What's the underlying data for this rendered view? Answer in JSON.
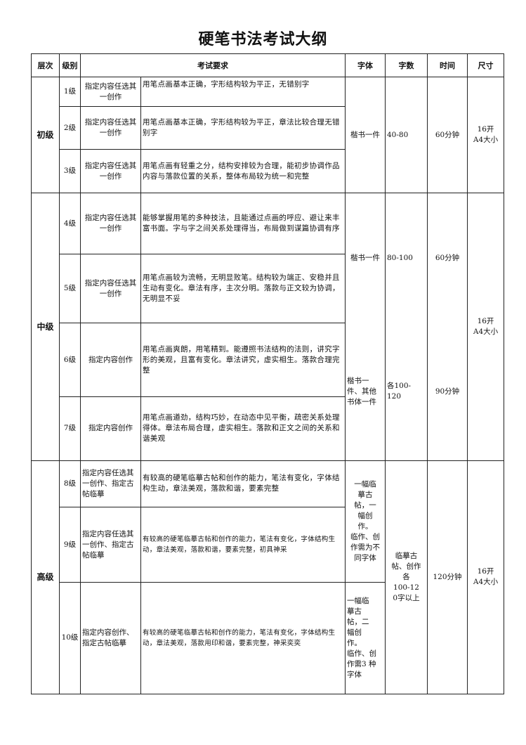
{
  "title": "硬笔书法考试大纲",
  "headers": {
    "level": "层次",
    "grade": "级别",
    "requirements": "考试要求",
    "script": "字体",
    "count": "字数",
    "time": "时间",
    "size": "尺寸"
  },
  "sections": {
    "beginner": {
      "name": "初级",
      "script": "楷书一件",
      "count": "40-80",
      "time": "60分钟",
      "size": "16开\nA4大小"
    },
    "intermediate": {
      "name": "中级",
      "script_a": "楷书一件",
      "count_a": "80-100",
      "time_a": "60分钟",
      "script_b": "楷书一\n件、其他\n书体一件",
      "count_b": "各100-\n120",
      "time_b": "90分钟",
      "size": "16开\nA4大小"
    },
    "advanced": {
      "name": "高级",
      "script_a": "一幅临\n摹古\n帖，一\n幅创\n作。\n临作、创\n作需为不\n同字体",
      "script_b": "一幅临\n摹古\n帖，二\n幅创\n作。\n临作、创\n作需3 种\n字体",
      "count": "临摹古\n帖、创作\n各\n100-12\n0字以上",
      "time": "120分钟",
      "size": "16开\nA4大小"
    }
  },
  "rows": [
    {
      "grade": "1级",
      "content": "指定内容任选其一创作",
      "req": "用笔点画基本正确，字形结构较为平正，无错别字"
    },
    {
      "grade": "2级",
      "content": "指定内容任选其一创作",
      "req": "用笔点画基本正确，字形结构较为平正，章法比较合理无错别字"
    },
    {
      "grade": "3级",
      "content": "指定内容任选其一创作",
      "req": "用笔点画有轻重之分，结构安排较为合理，能初步协调作品内容与落款位置的关系，整体布局较为统一和完整"
    },
    {
      "grade": "4级",
      "content": "指定内容任选其一创作",
      "req": "能够掌握用笔的多种技法，且能通过点画的呼应、避让来丰富书面。字与字之间关系处理得当，布局做到谋篇协调有序"
    },
    {
      "grade": "5级",
      "content": "指定内容任选其一创作",
      "req": "用笔点画较为流畅，无明显败笔。结构较为端正、安稳并且生动有变化。章法有序，主次分明。落款与正文较为协调，无明显不妥"
    },
    {
      "grade": "6级",
      "content": "指定内容创作",
      "req": "用笔点画爽朗，用笔精到。能遵照书法结构的法则，讲究字形的美观，且富有变化。章法讲究，虚实相生。落款合理完整"
    },
    {
      "grade": "7级",
      "content": "指定内容创作",
      "req": "用笔点画遒劲，结构巧妙，在动态中见平衡，疏密关系处理得体。章法布局合理，虚实相生。落款和正文之间的关系和谐美观"
    },
    {
      "grade": "8级",
      "content": "指定内容任选其一创作、指定古帖临摹",
      "req": "有较高的硬笔临摹古帖和创作的能力，笔法有变化，字体结构生动，章法美观，落款和谐，要素完整"
    },
    {
      "grade": "9级",
      "content": "指定内容任选其一创作、指定古帖临摹",
      "req": "有较高的硬笔临摹古帖和创作的能力，笔法有变化，字体结构生动，章法美观，落款和谐，要素完整，初具神采"
    },
    {
      "grade": "10级",
      "content": "指定内容创作、指定古帖临摹",
      "req": "有较高的硬笔临摹古帖和创作的能力，笔法有变化，字体结构生动，章法美观，落款用印和谐，要素完整，神采奕奕"
    }
  ]
}
